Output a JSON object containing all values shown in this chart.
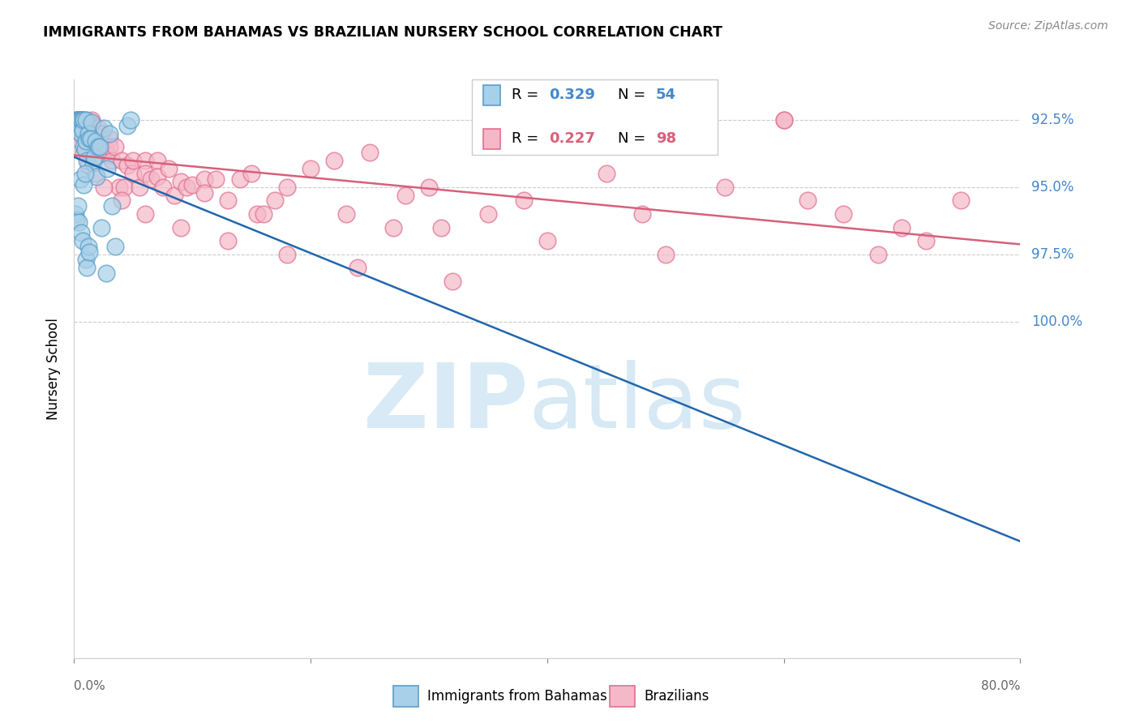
{
  "title": "IMMIGRANTS FROM BAHAMAS VS BRAZILIAN NURSERY SCHOOL CORRELATION CHART",
  "source": "Source: ZipAtlas.com",
  "ylabel": "Nursery School",
  "x_range": [
    0.0,
    80.0
  ],
  "y_range": [
    80.0,
    101.5
  ],
  "y_ticks": [
    92.5,
    95.0,
    97.5,
    100.0
  ],
  "legend_label1": "Immigrants from Bahamas",
  "legend_label2": "Brazilians",
  "R1": 0.329,
  "N1": 54,
  "R2": 0.227,
  "N2": 98,
  "color_blue_face": "#a8d0e8",
  "color_blue_edge": "#5a9ec9",
  "color_blue_line": "#2166ac",
  "color_pink_face": "#f4b8c8",
  "color_pink_edge": "#e07090",
  "color_pink_line": "#d6607a",
  "color_right_labels": "#4488cc",
  "blue_x": [
    0.1,
    0.2,
    0.2,
    0.3,
    0.3,
    0.3,
    0.4,
    0.4,
    0.4,
    0.5,
    0.5,
    0.5,
    0.6,
    0.6,
    0.7,
    0.7,
    0.8,
    0.8,
    0.9,
    1.0,
    1.0,
    1.1,
    1.2,
    1.3,
    1.4,
    1.5,
    1.6,
    1.7,
    1.8,
    1.9,
    2.0,
    2.2,
    2.3,
    2.5,
    2.7,
    2.8,
    3.0,
    3.2,
    3.5,
    4.5,
    0.1,
    0.2,
    0.3,
    0.4,
    0.5,
    0.6,
    0.7,
    0.8,
    0.9,
    1.0,
    1.1,
    1.2,
    1.3,
    4.8
  ],
  "blue_y": [
    99.6,
    100.0,
    99.8,
    100.0,
    99.9,
    100.0,
    100.0,
    99.7,
    100.0,
    100.0,
    99.8,
    100.0,
    100.0,
    99.5,
    100.0,
    99.6,
    100.0,
    99.0,
    98.9,
    100.0,
    99.2,
    98.5,
    99.5,
    99.3,
    99.3,
    99.9,
    98.4,
    98.6,
    99.2,
    97.9,
    99.0,
    99.0,
    96.0,
    99.7,
    94.3,
    98.2,
    99.5,
    96.8,
    95.3,
    99.8,
    96.5,
    96.3,
    96.8,
    96.2,
    97.8,
    95.8,
    95.5,
    97.6,
    98.0,
    94.8,
    94.5,
    95.3,
    95.1,
    100.0
  ],
  "pink_x": [
    0.2,
    0.3,
    0.4,
    0.5,
    0.5,
    0.6,
    0.7,
    0.7,
    0.8,
    0.9,
    1.0,
    1.0,
    1.1,
    1.2,
    1.3,
    1.4,
    1.5,
    1.5,
    1.6,
    1.7,
    1.8,
    1.9,
    2.0,
    2.0,
    2.1,
    2.2,
    2.3,
    2.5,
    2.7,
    2.8,
    3.0,
    3.0,
    3.2,
    3.5,
    3.8,
    4.0,
    4.2,
    4.5,
    5.0,
    5.0,
    5.5,
    6.0,
    6.0,
    6.5,
    7.0,
    7.0,
    7.5,
    8.0,
    8.5,
    9.0,
    9.5,
    10.0,
    11.0,
    11.0,
    12.0,
    13.0,
    14.0,
    15.0,
    15.5,
    16.0,
    17.0,
    18.0,
    20.0,
    22.0,
    23.0,
    25.0,
    27.0,
    28.0,
    30.0,
    31.0,
    35.0,
    38.0,
    40.0,
    45.0,
    48.0,
    50.0,
    55.0,
    60.0,
    62.0,
    65.0,
    68.0,
    70.0,
    72.0,
    75.0,
    0.4,
    0.6,
    0.8,
    1.2,
    1.8,
    2.5,
    4.0,
    6.0,
    9.0,
    13.0,
    18.0,
    24.0,
    32.0,
    60.0
  ],
  "pink_y": [
    100.0,
    100.0,
    100.0,
    100.0,
    99.5,
    100.0,
    99.8,
    100.0,
    99.7,
    99.9,
    100.0,
    99.5,
    99.8,
    99.6,
    99.7,
    99.3,
    100.0,
    99.4,
    99.8,
    99.0,
    99.5,
    99.5,
    99.7,
    99.0,
    99.3,
    99.5,
    99.5,
    99.0,
    98.8,
    98.7,
    99.3,
    99.0,
    98.5,
    99.0,
    97.5,
    98.5,
    97.5,
    98.3,
    98.0,
    98.5,
    97.5,
    98.5,
    98.0,
    97.8,
    98.5,
    97.9,
    97.5,
    98.2,
    97.2,
    97.7,
    97.5,
    97.6,
    97.8,
    97.3,
    97.8,
    97.0,
    97.8,
    98.0,
    96.5,
    96.5,
    97.0,
    97.5,
    98.2,
    98.5,
    96.5,
    98.8,
    96.0,
    97.2,
    97.5,
    96.0,
    96.5,
    97.0,
    95.5,
    98.0,
    96.5,
    95.0,
    97.5,
    100.0,
    97.0,
    96.5,
    95.0,
    96.0,
    95.5,
    97.0,
    99.5,
    99.2,
    98.8,
    98.3,
    98.0,
    97.5,
    97.0,
    96.5,
    96.0,
    95.5,
    95.0,
    94.5,
    94.0,
    100.0
  ]
}
